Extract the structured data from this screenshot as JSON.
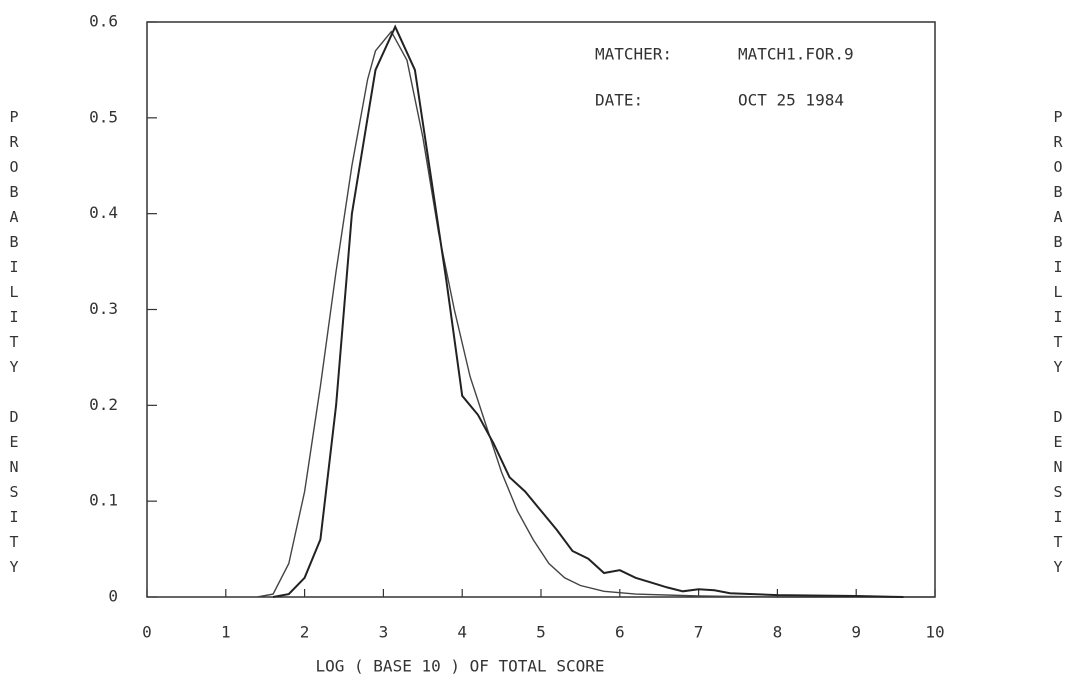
{
  "chart_data": {
    "type": "line",
    "xlabel": "LOG ( BASE 10 ) OF TOTAL SCORE",
    "ylabel": "PROBABILITY DENSITY",
    "annotations": [
      "MATCHER:",
      "MATCH1.FOR.9",
      "DATE:",
      "OCT 25 1984"
    ],
    "xlim": [
      0,
      10
    ],
    "xticks": [
      0,
      1,
      2,
      3,
      4,
      5,
      6,
      7,
      8,
      9,
      10
    ],
    "ylim": [
      0,
      0.6
    ],
    "yticks": [
      0,
      0.1,
      0.2,
      0.3,
      0.4,
      0.5,
      0.6
    ],
    "series": [
      {
        "color": "#444444",
        "x": [
          1.4,
          1.6,
          1.8,
          2.0,
          2.2,
          2.4,
          2.6,
          2.8,
          2.9,
          3.1,
          3.3,
          3.5,
          3.7,
          3.9,
          4.1,
          4.3,
          4.5,
          4.7,
          4.9,
          5.1,
          5.3,
          5.5,
          5.8,
          6.2,
          7.0,
          8.0,
          10.0
        ],
        "values": [
          0,
          0.003,
          0.035,
          0.11,
          0.22,
          0.34,
          0.45,
          0.54,
          0.57,
          0.59,
          0.56,
          0.48,
          0.38,
          0.3,
          0.23,
          0.18,
          0.13,
          0.09,
          0.06,
          0.035,
          0.02,
          0.012,
          0.006,
          0.003,
          0.001,
          0,
          0
        ]
      },
      {
        "color": "#222222",
        "x": [
          1.6,
          1.8,
          2.0,
          2.2,
          2.4,
          2.6,
          2.8,
          2.9,
          3.15,
          3.4,
          3.6,
          3.8,
          4.0,
          4.2,
          4.4,
          4.6,
          4.8,
          5.0,
          5.2,
          5.4,
          5.6,
          5.8,
          6.0,
          6.2,
          6.4,
          6.6,
          6.8,
          7.0,
          7.2,
          7.4,
          8.0,
          9.0,
          9.6
        ],
        "values": [
          0,
          0.003,
          0.02,
          0.06,
          0.2,
          0.4,
          0.5,
          0.55,
          0.595,
          0.55,
          0.44,
          0.33,
          0.21,
          0.19,
          0.16,
          0.125,
          0.11,
          0.09,
          0.07,
          0.048,
          0.04,
          0.025,
          0.028,
          0.02,
          0.015,
          0.01,
          0.006,
          0.008,
          0.007,
          0.004,
          0.002,
          0.001,
          0
        ]
      }
    ]
  }
}
